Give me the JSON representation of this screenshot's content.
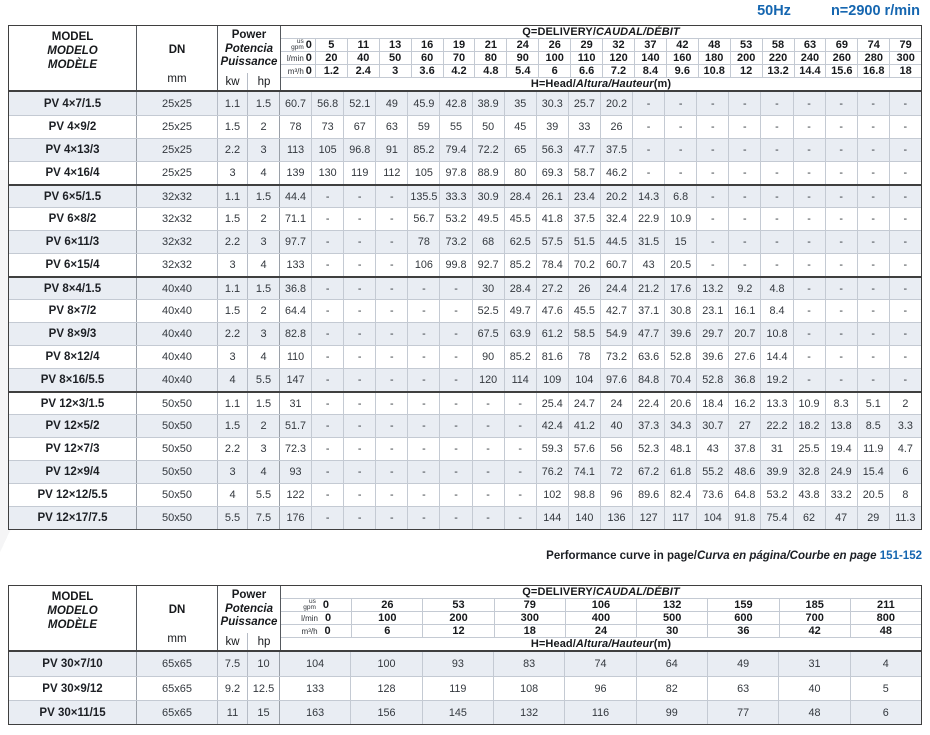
{
  "topbar": {
    "frequency": "50Hz",
    "speed": "n=2900 r/min"
  },
  "labels": {
    "model_lines": [
      "MODEL",
      "MODELO",
      "MODÈLE"
    ],
    "dn": "DN",
    "mm": "mm",
    "power_lines": [
      "Power",
      "Potencia",
      "Puissance"
    ],
    "kw": "kw",
    "hp": "hp",
    "q_plain": "Q=DELIVERY/",
    "q_italic": "CAUDAL/DÉBIT",
    "h_plain": "H=Head/",
    "h_italic": "Altura/Hauteur",
    "h_suffix": "(m)",
    "unit_gpm_top": "us",
    "unit_gpm_bottom": "gpm",
    "unit_lmin": "l/min",
    "unit_m3h": "m³/h"
  },
  "note": {
    "plain": "Performance curve in page/",
    "italic": "Curva en página/Courbe en page",
    "pages": "151-152"
  },
  "colors": {
    "accent_blue": "#1566b0",
    "stripe": "#e9edf3"
  },
  "table1": {
    "flow_gpm": [
      "0",
      "5",
      "11",
      "13",
      "16",
      "19",
      "21",
      "24",
      "26",
      "29",
      "32",
      "37",
      "42",
      "48",
      "53",
      "58",
      "63",
      "69",
      "74",
      "79"
    ],
    "flow_lmin": [
      "0",
      "20",
      "40",
      "50",
      "60",
      "70",
      "80",
      "90",
      "100",
      "110",
      "120",
      "140",
      "160",
      "180",
      "200",
      "220",
      "240",
      "260",
      "280",
      "300"
    ],
    "flow_m3h": [
      "0",
      "1.2",
      "2.4",
      "3",
      "3.6",
      "4.2",
      "4.8",
      "5.4",
      "6",
      "6.6",
      "7.2",
      "8.4",
      "9.6",
      "10.8",
      "12",
      "13.2",
      "14.4",
      "15.6",
      "16.8",
      "18"
    ],
    "group_starts": [
      4,
      8,
      13
    ],
    "rows": [
      {
        "model": "PV 4×7/1.5",
        "dn": "25x25",
        "kw": "1.1",
        "hp": "1.5",
        "head": [
          "60.7",
          "56.8",
          "52.1",
          "49",
          "45.9",
          "42.8",
          "38.9",
          "35",
          "30.3",
          "25.7",
          "20.2",
          "-",
          "-",
          "-",
          "-",
          "-",
          "-",
          "-",
          "-",
          "-"
        ]
      },
      {
        "model": "PV 4×9/2",
        "dn": "25x25",
        "kw": "1.5",
        "hp": "2",
        "head": [
          "78",
          "73",
          "67",
          "63",
          "59",
          "55",
          "50",
          "45",
          "39",
          "33",
          "26",
          "-",
          "-",
          "-",
          "-",
          "-",
          "-",
          "-",
          "-",
          "-"
        ]
      },
      {
        "model": "PV 4×13/3",
        "dn": "25x25",
        "kw": "2.2",
        "hp": "3",
        "head": [
          "113",
          "105",
          "96.8",
          "91",
          "85.2",
          "79.4",
          "72.2",
          "65",
          "56.3",
          "47.7",
          "37.5",
          "-",
          "-",
          "-",
          "-",
          "-",
          "-",
          "-",
          "-",
          "-"
        ]
      },
      {
        "model": "PV 4×16/4",
        "dn": "25x25",
        "kw": "3",
        "hp": "4",
        "head": [
          "139",
          "130",
          "119",
          "112",
          "105",
          "97.8",
          "88.9",
          "80",
          "69.3",
          "58.7",
          "46.2",
          "-",
          "-",
          "-",
          "-",
          "-",
          "-",
          "-",
          "-",
          "-"
        ]
      },
      {
        "model": "PV 6×5/1.5",
        "dn": "32x32",
        "kw": "1.1",
        "hp": "1.5",
        "head": [
          "44.4",
          "-",
          "-",
          "-",
          "135.5",
          "33.3",
          "30.9",
          "28.4",
          "26.1",
          "23.4",
          "20.2",
          "14.3",
          "6.8",
          "-",
          "-",
          "-",
          "-",
          "-",
          "-",
          "-"
        ]
      },
      {
        "model": "PV 6×8/2",
        "dn": "32x32",
        "kw": "1.5",
        "hp": "2",
        "head": [
          "71.1",
          "-",
          "-",
          "-",
          "56.7",
          "53.2",
          "49.5",
          "45.5",
          "41.8",
          "37.5",
          "32.4",
          "22.9",
          "10.9",
          "-",
          "-",
          "-",
          "-",
          "-",
          "-",
          "-"
        ]
      },
      {
        "model": "PV 6×11/3",
        "dn": "32x32",
        "kw": "2.2",
        "hp": "3",
        "head": [
          "97.7",
          "-",
          "-",
          "-",
          "78",
          "73.2",
          "68",
          "62.5",
          "57.5",
          "51.5",
          "44.5",
          "31.5",
          "15",
          "-",
          "-",
          "-",
          "-",
          "-",
          "-",
          "-"
        ]
      },
      {
        "model": "PV 6×15/4",
        "dn": "32x32",
        "kw": "3",
        "hp": "4",
        "head": [
          "133",
          "-",
          "-",
          "-",
          "106",
          "99.8",
          "92.7",
          "85.2",
          "78.4",
          "70.2",
          "60.7",
          "43",
          "20.5",
          "-",
          "-",
          "-",
          "-",
          "-",
          "-",
          "-"
        ]
      },
      {
        "model": "PV 8×4/1.5",
        "dn": "40x40",
        "kw": "1.1",
        "hp": "1.5",
        "head": [
          "36.8",
          "-",
          "-",
          "-",
          "-",
          "-",
          "30",
          "28.4",
          "27.2",
          "26",
          "24.4",
          "21.2",
          "17.6",
          "13.2",
          "9.2",
          "4.8",
          "-",
          "-",
          "-",
          "-"
        ]
      },
      {
        "model": "PV 8×7/2",
        "dn": "40x40",
        "kw": "1.5",
        "hp": "2",
        "head": [
          "64.4",
          "-",
          "-",
          "-",
          "-",
          "-",
          "52.5",
          "49.7",
          "47.6",
          "45.5",
          "42.7",
          "37.1",
          "30.8",
          "23.1",
          "16.1",
          "8.4",
          "-",
          "-",
          "-",
          "-"
        ]
      },
      {
        "model": "PV 8×9/3",
        "dn": "40x40",
        "kw": "2.2",
        "hp": "3",
        "head": [
          "82.8",
          "-",
          "-",
          "-",
          "-",
          "-",
          "67.5",
          "63.9",
          "61.2",
          "58.5",
          "54.9",
          "47.7",
          "39.6",
          "29.7",
          "20.7",
          "10.8",
          "-",
          "-",
          "-",
          "-"
        ]
      },
      {
        "model": "PV 8×12/4",
        "dn": "40x40",
        "kw": "3",
        "hp": "4",
        "head": [
          "110",
          "-",
          "-",
          "-",
          "-",
          "-",
          "90",
          "85.2",
          "81.6",
          "78",
          "73.2",
          "63.6",
          "52.8",
          "39.6",
          "27.6",
          "14.4",
          "-",
          "-",
          "-",
          "-"
        ]
      },
      {
        "model": "PV 8×16/5.5",
        "dn": "40x40",
        "kw": "4",
        "hp": "5.5",
        "head": [
          "147",
          "-",
          "-",
          "-",
          "-",
          "-",
          "120",
          "114",
          "109",
          "104",
          "97.6",
          "84.8",
          "70.4",
          "52.8",
          "36.8",
          "19.2",
          "-",
          "-",
          "-",
          "-"
        ]
      },
      {
        "model": "PV 12×3/1.5",
        "dn": "50x50",
        "kw": "1.1",
        "hp": "1.5",
        "head": [
          "31",
          "-",
          "-",
          "-",
          "-",
          "-",
          "-",
          "-",
          "25.4",
          "24.7",
          "24",
          "22.4",
          "20.6",
          "18.4",
          "16.2",
          "13.3",
          "10.9",
          "8.3",
          "5.1",
          "2"
        ]
      },
      {
        "model": "PV 12×5/2",
        "dn": "50x50",
        "kw": "1.5",
        "hp": "2",
        "head": [
          "51.7",
          "-",
          "-",
          "-",
          "-",
          "-",
          "-",
          "-",
          "42.4",
          "41.2",
          "40",
          "37.3",
          "34.3",
          "30.7",
          "27",
          "22.2",
          "18.2",
          "13.8",
          "8.5",
          "3.3"
        ]
      },
      {
        "model": "PV 12×7/3",
        "dn": "50x50",
        "kw": "2.2",
        "hp": "3",
        "head": [
          "72.3",
          "-",
          "-",
          "-",
          "-",
          "-",
          "-",
          "-",
          "59.3",
          "57.6",
          "56",
          "52.3",
          "48.1",
          "43",
          "37.8",
          "31",
          "25.5",
          "19.4",
          "11.9",
          "4.7"
        ]
      },
      {
        "model": "PV 12×9/4",
        "dn": "50x50",
        "kw": "3",
        "hp": "4",
        "head": [
          "93",
          "-",
          "-",
          "-",
          "-",
          "-",
          "-",
          "-",
          "76.2",
          "74.1",
          "72",
          "67.2",
          "61.8",
          "55.2",
          "48.6",
          "39.9",
          "32.8",
          "24.9",
          "15.4",
          "6"
        ]
      },
      {
        "model": "PV 12×12/5.5",
        "dn": "50x50",
        "kw": "4",
        "hp": "5.5",
        "head": [
          "122",
          "-",
          "-",
          "-",
          "-",
          "-",
          "-",
          "-",
          "102",
          "98.8",
          "96",
          "89.6",
          "82.4",
          "73.6",
          "64.8",
          "53.2",
          "43.8",
          "33.2",
          "20.5",
          "8"
        ]
      },
      {
        "model": "PV 12×17/7.5",
        "dn": "50x50",
        "kw": "5.5",
        "hp": "7.5",
        "head": [
          "176",
          "-",
          "-",
          "-",
          "-",
          "-",
          "-",
          "-",
          "144",
          "140",
          "136",
          "127",
          "117",
          "104",
          "91.8",
          "75.4",
          "62",
          "47",
          "29",
          "11.3"
        ]
      }
    ]
  },
  "table2": {
    "flow_gpm": [
      "0",
      "26",
      "53",
      "79",
      "106",
      "132",
      "159",
      "185",
      "211"
    ],
    "flow_lmin": [
      "0",
      "100",
      "200",
      "300",
      "400",
      "500",
      "600",
      "700",
      "800"
    ],
    "flow_m3h": [
      "0",
      "6",
      "12",
      "18",
      "24",
      "30",
      "36",
      "42",
      "48"
    ],
    "group_starts": [],
    "rows": [
      {
        "model": "PV 30×7/10",
        "dn": "65x65",
        "kw": "7.5",
        "hp": "10",
        "head": [
          "104",
          "100",
          "93",
          "83",
          "74",
          "64",
          "49",
          "31",
          "4"
        ]
      },
      {
        "model": "PV 30×9/12",
        "dn": "65x65",
        "kw": "9.2",
        "hp": "12.5",
        "head": [
          "133",
          "128",
          "119",
          "108",
          "96",
          "82",
          "63",
          "40",
          "5"
        ]
      },
      {
        "model": "PV 30×11/15",
        "dn": "65x65",
        "kw": "11",
        "hp": "15",
        "head": [
          "163",
          "156",
          "145",
          "132",
          "116",
          "99",
          "77",
          "48",
          "6"
        ]
      }
    ]
  }
}
